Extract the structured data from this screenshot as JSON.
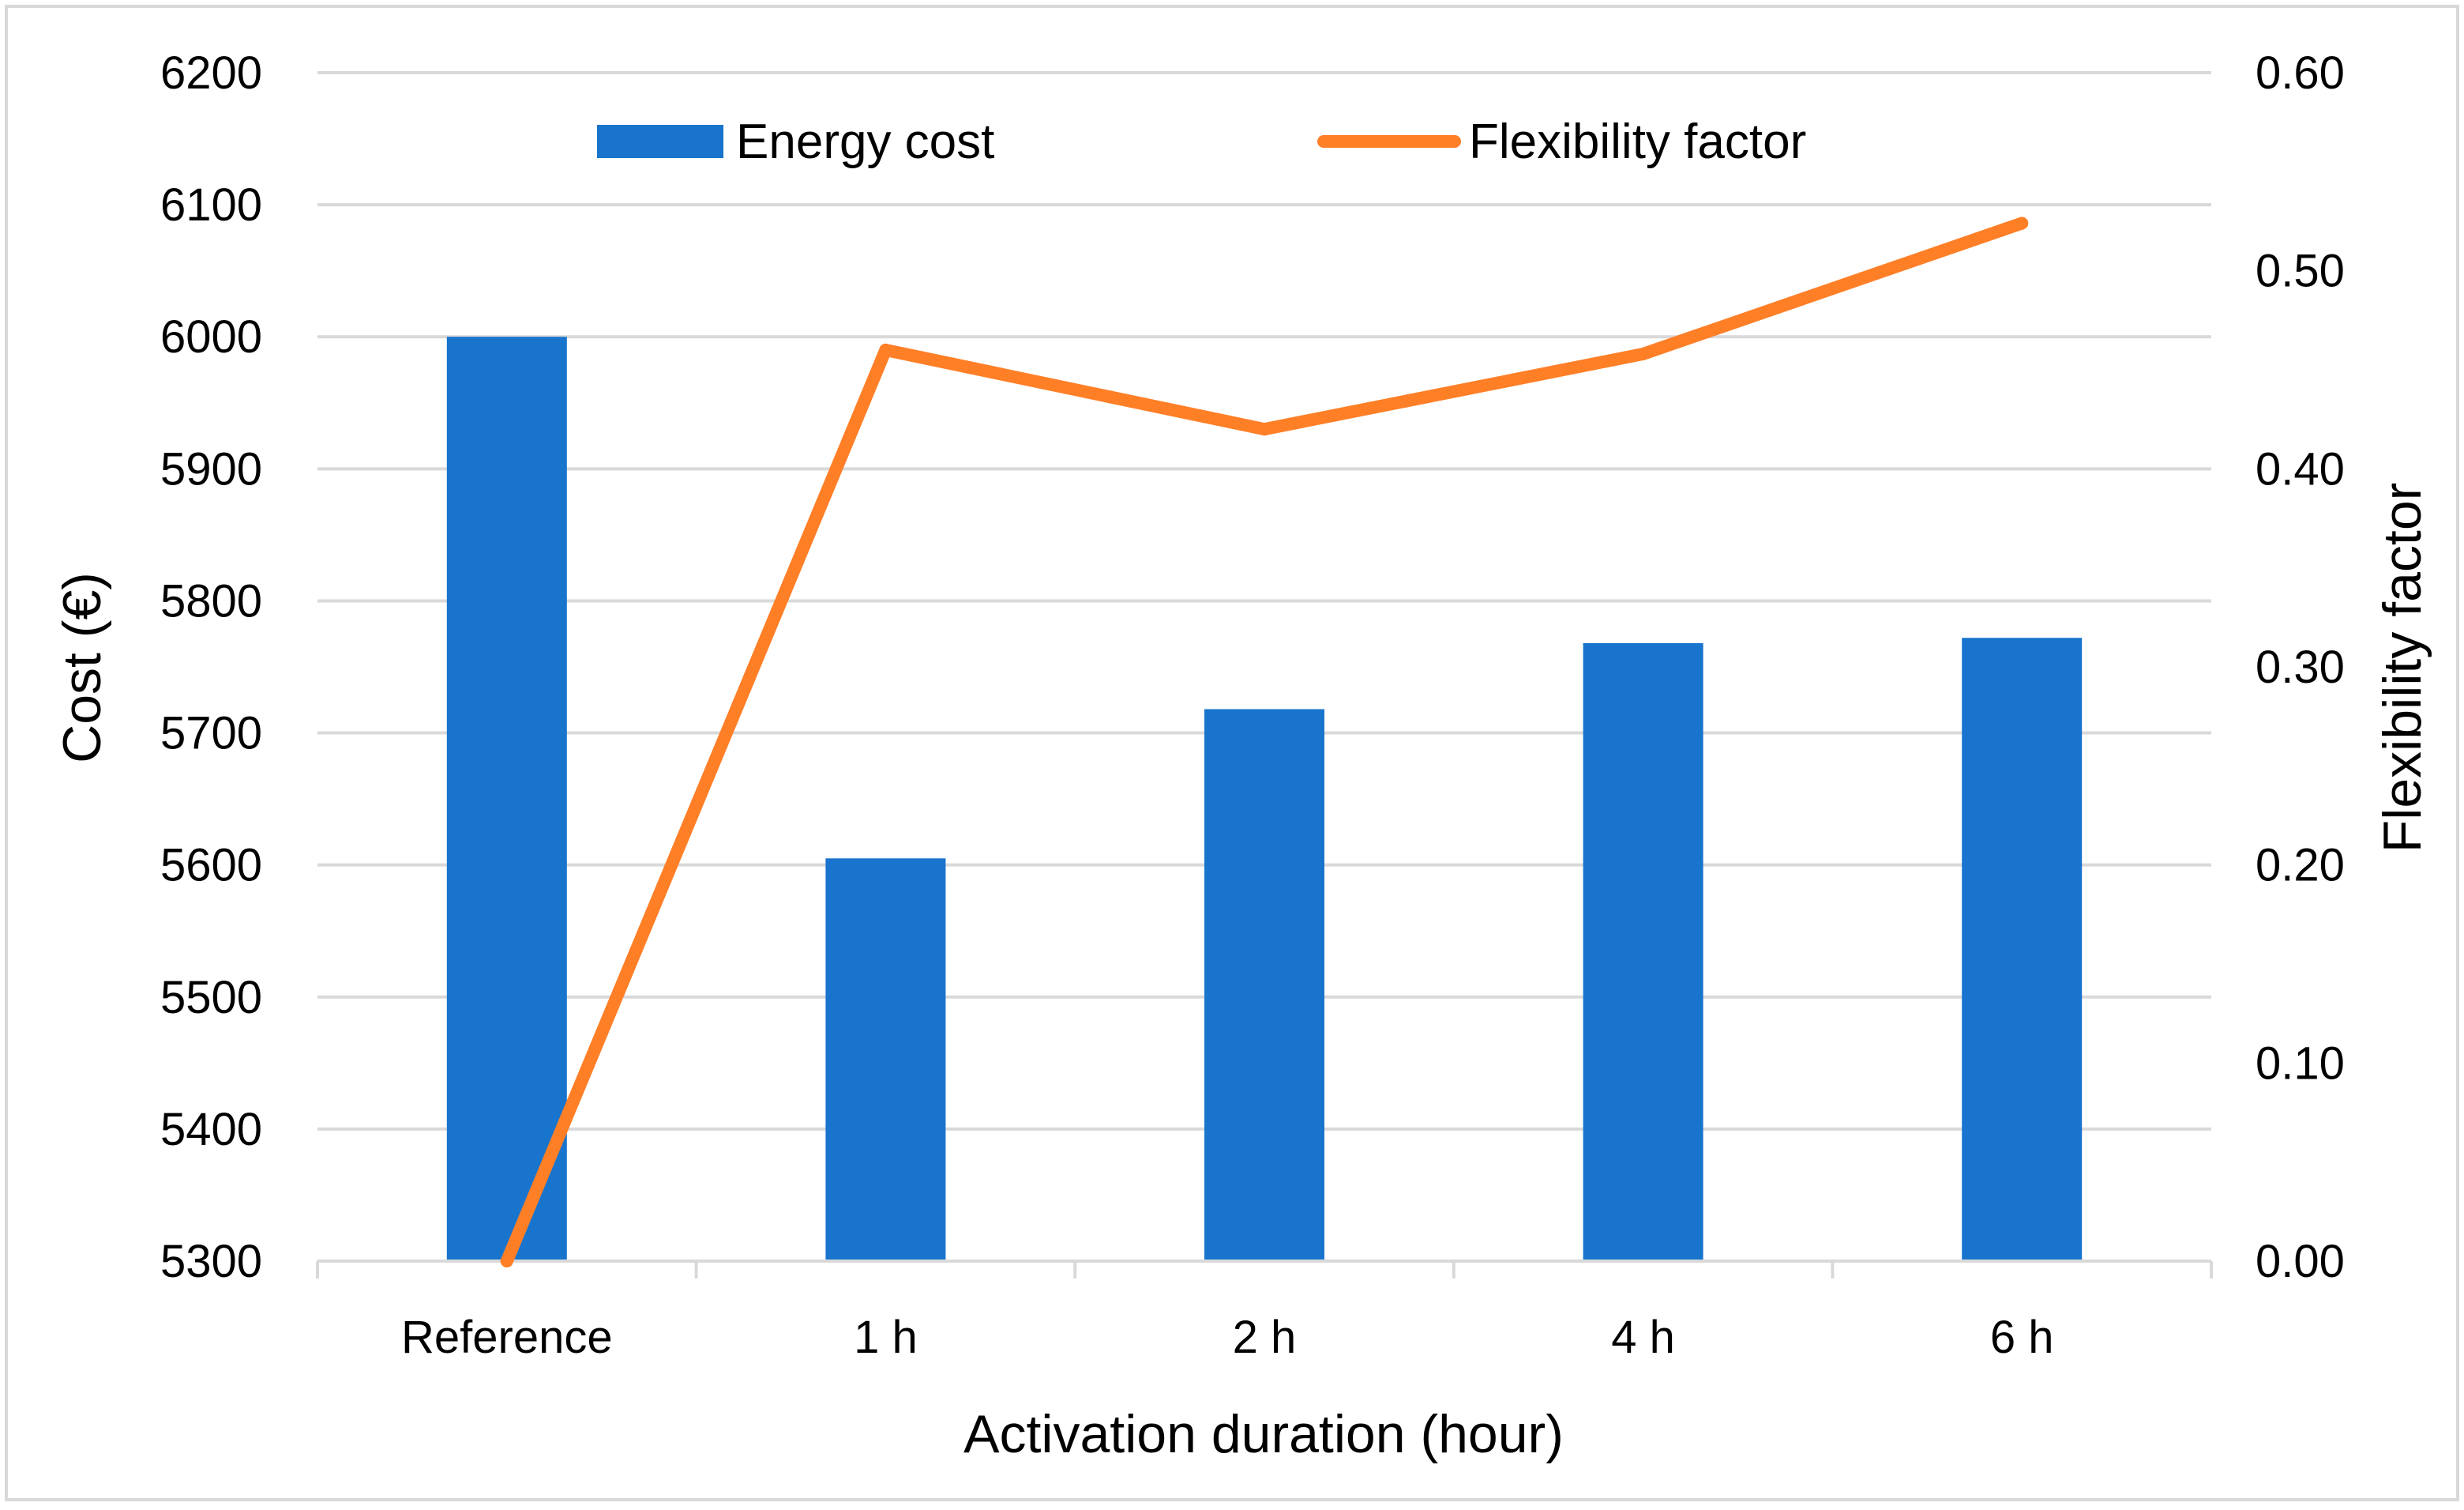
{
  "chart_data": {
    "type": "bar",
    "title": "",
    "categories": [
      "Reference",
      "1 h",
      "2 h",
      "4 h",
      "6 h"
    ],
    "series": [
      {
        "name": "Energy cost",
        "type": "bar",
        "axis": "left",
        "color": "#1874CD",
        "values": [
          6000,
          5605,
          5718,
          5768,
          5772
        ]
      },
      {
        "name": "Flexibility factor",
        "type": "line",
        "axis": "right",
        "color": "#FF7F27",
        "values": [
          0.0,
          0.46,
          0.42,
          0.458,
          0.524
        ]
      }
    ],
    "xlabel": "Activation duration (hour)",
    "ylabel": "Cost (€)",
    "y2label": "Flexibility factor",
    "ylim": [
      5300,
      6200
    ],
    "y2lim": [
      0.0,
      0.6
    ],
    "yticks": [
      "5300",
      "5400",
      "5500",
      "5600",
      "5700",
      "5800",
      "5900",
      "6000",
      "6100",
      "6200"
    ],
    "y2ticks": [
      "0.00",
      "0.10",
      "0.20",
      "0.30",
      "0.40",
      "0.50",
      "0.60"
    ],
    "grid": true,
    "legend": "top"
  },
  "colors": {
    "bar": "#1874CD",
    "line": "#FF7F27",
    "grid": "#D9D9D9",
    "border": "#D9D9D9"
  }
}
